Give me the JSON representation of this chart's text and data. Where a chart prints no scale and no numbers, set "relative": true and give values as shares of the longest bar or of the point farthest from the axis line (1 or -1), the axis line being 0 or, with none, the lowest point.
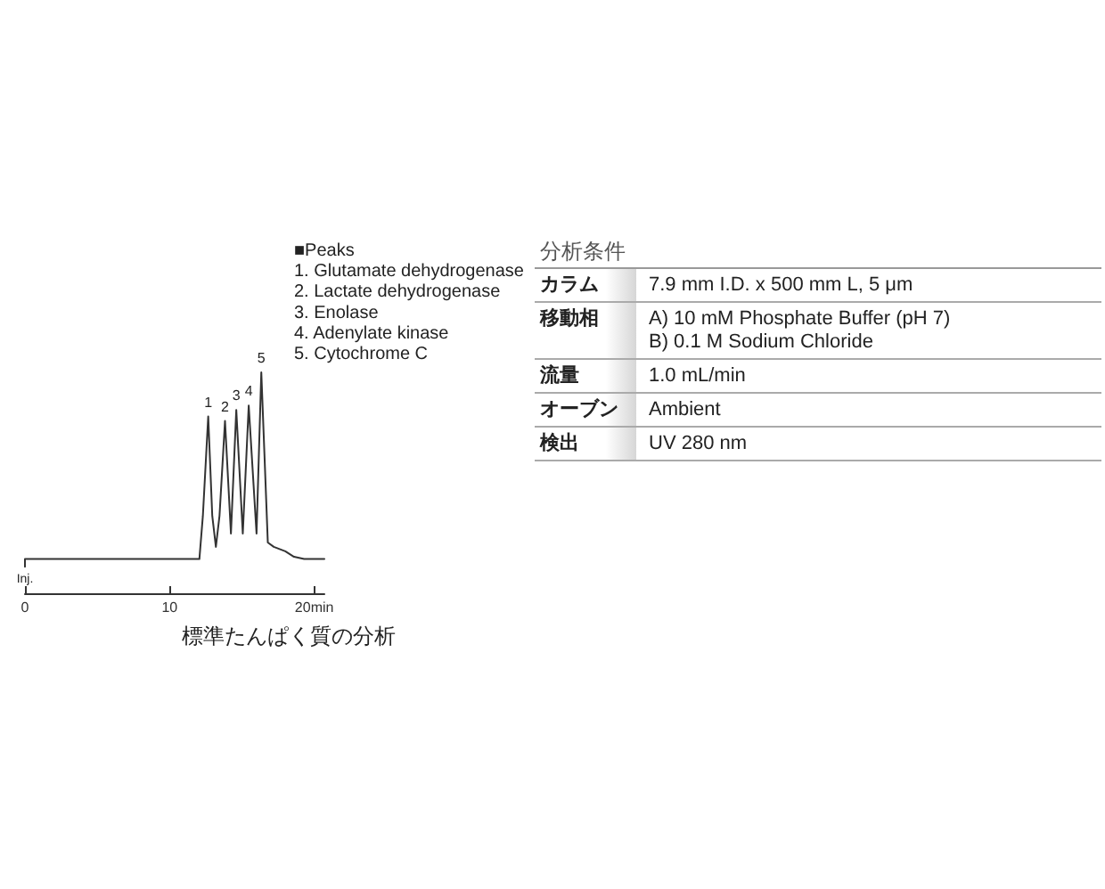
{
  "chart_data": [
    {
      "type": "line",
      "title": "標準たんぱく質の分析",
      "relative": true,
      "color": "#333333",
      "marker": "none",
      "x": [
        0,
        0,
        12.06,
        12.3,
        12.67,
        12.95,
        13.2,
        13.45,
        13.83,
        14.24,
        14.61,
        15.06,
        15.47,
        16.01,
        16.34,
        16.79,
        17.2,
        18.0,
        18.6,
        19.3,
        20.7
      ],
      "values": [
        0.12,
        0.155,
        0.155,
        0.35,
        0.8,
        0.35,
        0.21,
        0.35,
        0.78,
        0.27,
        0.83,
        0.27,
        0.85,
        0.27,
        1.0,
        0.23,
        0.21,
        0.19,
        0.165,
        0.155,
        0.155
      ],
      "xlim": [
        0,
        20.7
      ],
      "xticks": [
        0,
        10,
        {
          "value": 20,
          "label": "20min"
        }
      ],
      "annotations": [
        "■Peaks",
        "1. Glutamate dehydrogenase",
        "2. Lactate dehydrogenase",
        "3. Enolase",
        "4. Adenylate kinase",
        "5. Cytochrome C",
        {
          "text": "1",
          "x": 12.67,
          "y": 0.8
        },
        {
          "text": "2",
          "x": 13.83,
          "y": 0.78
        },
        {
          "text": "3",
          "x": 14.61,
          "y": 0.83
        },
        {
          "text": "4",
          "x": 15.47,
          "y": 0.85
        },
        {
          "text": "5",
          "x": 16.34,
          "y": 1.0
        },
        "Inj."
      ]
    },
    {
      "type": "other",
      "title": "分析条件",
      "categories": [
        "カラム",
        "移動相",
        "流量",
        "オーブン",
        "検出"
      ],
      "annotations": [
        "7.9 mm I.D. x 500 mm L, 5 μm",
        "A) 10 mM Phosphate Buffer (pH 7)\nB) 0.1 M Sodium Chloride",
        "1.0 mL/min",
        "Ambient",
        "UV 280 nm"
      ]
    }
  ]
}
